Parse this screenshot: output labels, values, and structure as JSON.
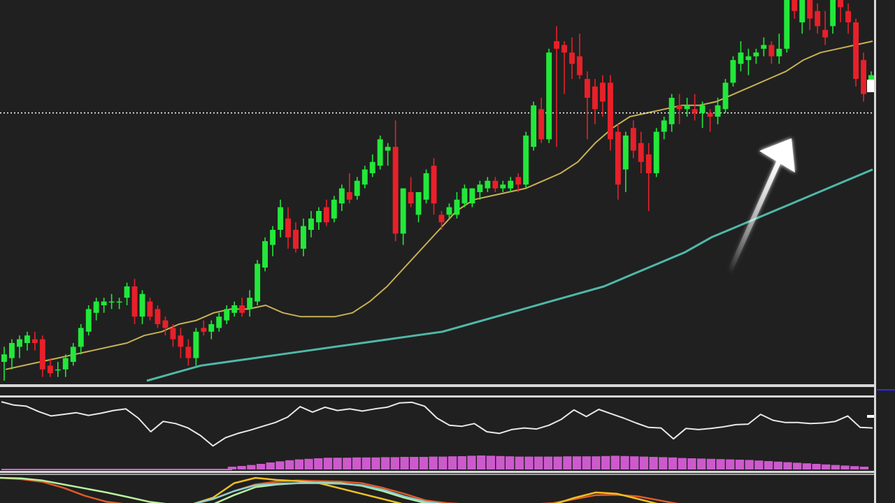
{
  "colors": {
    "background": "#202020",
    "bull": "#22e83a",
    "bear": "#e8202a",
    "ma_fast": "#c8b055",
    "ma_slow": "#4fb8a8",
    "oscillator": "#e8e8e8",
    "histogram": "#e060e0",
    "separator": "#d8d8d8",
    "price_level": "#ffffff",
    "arrow": "#ffffff",
    "lower_lines": [
      "#e05a28",
      "#f0c020",
      "#b8f0a0",
      "#8ad0d0"
    ]
  },
  "chart_data": [
    {
      "type": "candlestick",
      "panel": "price",
      "title": "",
      "xlabel": "",
      "ylabel": "",
      "grid": false,
      "legend": "none",
      "ylim": [
        0,
        100
      ],
      "price_level_line": 71,
      "candles": [
        {
          "o": 5,
          "h": 9,
          "l": 0,
          "c": 7
        },
        {
          "o": 6,
          "h": 11,
          "l": 3,
          "c": 10
        },
        {
          "o": 9,
          "h": 12,
          "l": 6,
          "c": 11
        },
        {
          "o": 10,
          "h": 13,
          "l": 8,
          "c": 12
        },
        {
          "o": 11,
          "h": 13,
          "l": 8,
          "c": 10
        },
        {
          "o": 11,
          "h": 12,
          "l": 1,
          "c": 3
        },
        {
          "o": 4,
          "h": 6,
          "l": 1,
          "c": 2
        },
        {
          "o": 3,
          "h": 5,
          "l": 1,
          "c": 3
        },
        {
          "o": 3,
          "h": 7,
          "l": 1,
          "c": 6
        },
        {
          "o": 5,
          "h": 10,
          "l": 4,
          "c": 9
        },
        {
          "o": 9,
          "h": 15,
          "l": 7,
          "c": 14
        },
        {
          "o": 13,
          "h": 20,
          "l": 12,
          "c": 19
        },
        {
          "o": 18,
          "h": 22,
          "l": 16,
          "c": 21
        },
        {
          "o": 20,
          "h": 22,
          "l": 18,
          "c": 21
        },
        {
          "o": 21,
          "h": 23,
          "l": 19,
          "c": 21
        },
        {
          "o": 21,
          "h": 22,
          "l": 19,
          "c": 21
        },
        {
          "o": 22,
          "h": 26,
          "l": 20,
          "c": 25
        },
        {
          "o": 25,
          "h": 27,
          "l": 15,
          "c": 17
        },
        {
          "o": 17,
          "h": 24,
          "l": 15,
          "c": 23
        },
        {
          "o": 21,
          "h": 22,
          "l": 16,
          "c": 17
        },
        {
          "o": 19,
          "h": 20,
          "l": 14,
          "c": 15
        },
        {
          "o": 16,
          "h": 17,
          "l": 12,
          "c": 14
        },
        {
          "o": 14,
          "h": 15,
          "l": 9,
          "c": 11
        },
        {
          "o": 12,
          "h": 14,
          "l": 6,
          "c": 9
        },
        {
          "o": 9,
          "h": 11,
          "l": 4,
          "c": 6
        },
        {
          "o": 6,
          "h": 14,
          "l": 4,
          "c": 13
        },
        {
          "o": 14,
          "h": 16,
          "l": 12,
          "c": 13
        },
        {
          "o": 13,
          "h": 16,
          "l": 11,
          "c": 15
        },
        {
          "o": 14,
          "h": 18,
          "l": 13,
          "c": 17
        },
        {
          "o": 16,
          "h": 20,
          "l": 15,
          "c": 19
        },
        {
          "o": 18,
          "h": 21,
          "l": 17,
          "c": 20
        },
        {
          "o": 20,
          "h": 22,
          "l": 17,
          "c": 18
        },
        {
          "o": 19,
          "h": 24,
          "l": 17,
          "c": 22
        },
        {
          "o": 21,
          "h": 32,
          "l": 20,
          "c": 31
        },
        {
          "o": 30,
          "h": 38,
          "l": 29,
          "c": 37
        },
        {
          "o": 36,
          "h": 41,
          "l": 33,
          "c": 40
        },
        {
          "o": 40,
          "h": 48,
          "l": 38,
          "c": 46
        },
        {
          "o": 43,
          "h": 46,
          "l": 35,
          "c": 38
        },
        {
          "o": 40,
          "h": 42,
          "l": 34,
          "c": 35
        },
        {
          "o": 35,
          "h": 43,
          "l": 33,
          "c": 41
        },
        {
          "o": 40,
          "h": 45,
          "l": 38,
          "c": 43
        },
        {
          "o": 42,
          "h": 46,
          "l": 40,
          "c": 45
        },
        {
          "o": 46,
          "h": 48,
          "l": 41,
          "c": 42
        },
        {
          "o": 43,
          "h": 49,
          "l": 42,
          "c": 48
        },
        {
          "o": 47,
          "h": 52,
          "l": 45,
          "c": 51
        },
        {
          "o": 50,
          "h": 55,
          "l": 47,
          "c": 48
        },
        {
          "o": 49,
          "h": 54,
          "l": 48,
          "c": 53
        },
        {
          "o": 52,
          "h": 57,
          "l": 51,
          "c": 56
        },
        {
          "o": 55,
          "h": 60,
          "l": 54,
          "c": 58
        },
        {
          "o": 57,
          "h": 65,
          "l": 56,
          "c": 64
        },
        {
          "o": 61,
          "h": 63,
          "l": 57,
          "c": 62
        },
        {
          "o": 62,
          "h": 69,
          "l": 37,
          "c": 39
        },
        {
          "o": 39,
          "h": 51,
          "l": 36,
          "c": 51
        },
        {
          "o": 50,
          "h": 54,
          "l": 46,
          "c": 47
        },
        {
          "o": 44,
          "h": 50,
          "l": 42,
          "c": 50
        },
        {
          "o": 48,
          "h": 56,
          "l": 47,
          "c": 55
        },
        {
          "o": 57,
          "h": 59,
          "l": 44,
          "c": 47
        },
        {
          "o": 44,
          "h": 45,
          "l": 40,
          "c": 42
        },
        {
          "o": 44,
          "h": 47,
          "l": 43,
          "c": 46
        },
        {
          "o": 44,
          "h": 50,
          "l": 43,
          "c": 48
        },
        {
          "o": 47,
          "h": 52,
          "l": 46,
          "c": 51
        },
        {
          "o": 47,
          "h": 51,
          "l": 46,
          "c": 51
        },
        {
          "o": 50,
          "h": 53,
          "l": 48,
          "c": 52
        },
        {
          "o": 51,
          "h": 54,
          "l": 50,
          "c": 53
        },
        {
          "o": 53,
          "h": 54,
          "l": 50,
          "c": 51
        },
        {
          "o": 51,
          "h": 53,
          "l": 50,
          "c": 52
        },
        {
          "o": 51,
          "h": 54,
          "l": 50,
          "c": 53
        },
        {
          "o": 54,
          "h": 55,
          "l": 50,
          "c": 52
        },
        {
          "o": 52,
          "h": 66,
          "l": 51,
          "c": 65
        },
        {
          "o": 62,
          "h": 74,
          "l": 61,
          "c": 73
        },
        {
          "o": 72,
          "h": 75,
          "l": 63,
          "c": 64
        },
        {
          "o": 64,
          "h": 88,
          "l": 63,
          "c": 87
        },
        {
          "o": 90,
          "h": 94,
          "l": 62,
          "c": 88
        },
        {
          "o": 89,
          "h": 90,
          "l": 76,
          "c": 87
        },
        {
          "o": 87,
          "h": 91,
          "l": 80,
          "c": 84
        },
        {
          "o": 86,
          "h": 92,
          "l": 80,
          "c": 81
        },
        {
          "o": 80,
          "h": 82,
          "l": 64,
          "c": 75
        },
        {
          "o": 78,
          "h": 80,
          "l": 68,
          "c": 72
        },
        {
          "o": 79,
          "h": 81,
          "l": 70,
          "c": 74
        },
        {
          "o": 79,
          "h": 81,
          "l": 61,
          "c": 64
        },
        {
          "o": 66,
          "h": 68,
          "l": 48,
          "c": 52
        },
        {
          "o": 56,
          "h": 66,
          "l": 50,
          "c": 65
        },
        {
          "o": 67,
          "h": 69,
          "l": 59,
          "c": 61
        },
        {
          "o": 63,
          "h": 66,
          "l": 55,
          "c": 58
        },
        {
          "o": 60,
          "h": 63,
          "l": 45,
          "c": 55
        },
        {
          "o": 55,
          "h": 67,
          "l": 54,
          "c": 66
        },
        {
          "o": 66,
          "h": 70,
          "l": 64,
          "c": 69
        },
        {
          "o": 68,
          "h": 76,
          "l": 66,
          "c": 75
        },
        {
          "o": 73,
          "h": 76,
          "l": 68,
          "c": 72
        },
        {
          "o": 72,
          "h": 75,
          "l": 70,
          "c": 73
        },
        {
          "o": 72,
          "h": 76,
          "l": 69,
          "c": 71
        },
        {
          "o": 71,
          "h": 74,
          "l": 67,
          "c": 73
        },
        {
          "o": 71,
          "h": 72,
          "l": 66,
          "c": 70
        },
        {
          "o": 70,
          "h": 75,
          "l": 68,
          "c": 73
        },
        {
          "o": 72,
          "h": 80,
          "l": 71,
          "c": 79
        },
        {
          "o": 79,
          "h": 86,
          "l": 78,
          "c": 85
        },
        {
          "o": 84,
          "h": 90,
          "l": 82,
          "c": 87
        },
        {
          "o": 85,
          "h": 88,
          "l": 81,
          "c": 86
        },
        {
          "o": 86,
          "h": 88,
          "l": 84,
          "c": 87
        },
        {
          "o": 88,
          "h": 91,
          "l": 86,
          "c": 89
        },
        {
          "o": 89,
          "h": 90,
          "l": 84,
          "c": 86
        },
        {
          "o": 86,
          "h": 92,
          "l": 84,
          "c": 88
        },
        {
          "o": 88,
          "h": 103,
          "l": 87,
          "c": 103
        },
        {
          "o": 103,
          "h": 105,
          "l": 96,
          "c": 98
        },
        {
          "o": 95,
          "h": 102,
          "l": 92,
          "c": 101
        },
        {
          "o": 102,
          "h": 104,
          "l": 93,
          "c": 96
        },
        {
          "o": 98,
          "h": 100,
          "l": 92,
          "c": 94
        },
        {
          "o": 93,
          "h": 98,
          "l": 89,
          "c": 91
        },
        {
          "o": 94,
          "h": 103,
          "l": 92,
          "c": 102
        },
        {
          "o": 104,
          "h": 105,
          "l": 95,
          "c": 99
        },
        {
          "o": 98,
          "h": 100,
          "l": 92,
          "c": 95
        },
        {
          "o": 95,
          "h": 96,
          "l": 78,
          "c": 80
        },
        {
          "o": 85,
          "h": 87,
          "l": 74,
          "c": 76
        },
        {
          "o": 78,
          "h": 82,
          "l": 77,
          "c": 81
        }
      ],
      "ma_fast": [
        3,
        4,
        5,
        6,
        7,
        8,
        9,
        10,
        12,
        13,
        15,
        16,
        18,
        19,
        19,
        20,
        18,
        17,
        17,
        17,
        18,
        21,
        25,
        30,
        35,
        40,
        45,
        48,
        49,
        50,
        51,
        53,
        55,
        58,
        63,
        67,
        70,
        71,
        72,
        73,
        73,
        74,
        76,
        78,
        80,
        82,
        85,
        87,
        88,
        89,
        90
      ],
      "ma_slow": [
        0,
        2,
        4,
        5,
        6,
        7,
        8,
        9,
        10,
        11,
        12,
        13,
        15,
        17,
        19,
        21,
        23,
        25,
        28,
        31,
        34,
        38,
        41,
        44,
        47,
        50,
        53,
        56
      ]
    },
    {
      "type": "line",
      "panel": "oscillator",
      "title": "",
      "ylim": [
        0,
        100
      ],
      "values": [
        96,
        90,
        88,
        78,
        70,
        73,
        76,
        71,
        75,
        80,
        83,
        66,
        41,
        60,
        56,
        48,
        34,
        15,
        30,
        38,
        44,
        51,
        58,
        68,
        87,
        77,
        86,
        80,
        83,
        79,
        83,
        86,
        94,
        95,
        88,
        66,
        53,
        51,
        56,
        41,
        38,
        45,
        48,
        46,
        53,
        64,
        81,
        69,
        82,
        74,
        66,
        57,
        49,
        48,
        28,
        47,
        45,
        47,
        50,
        54,
        55,
        73,
        62,
        58,
        58,
        56,
        57,
        60,
        70,
        49,
        48
      ]
    },
    {
      "type": "bar",
      "panel": "histogram",
      "title": "",
      "ylim": [
        0,
        100
      ],
      "values": [
        20,
        25,
        32,
        40,
        50,
        58,
        66,
        72,
        76,
        80,
        84,
        84,
        84,
        86,
        86,
        86,
        88,
        88,
        90,
        90,
        90,
        92,
        92,
        94,
        95,
        98,
        100,
        98,
        96,
        94,
        92,
        92,
        92,
        92,
        92,
        94,
        94,
        94,
        94,
        96,
        98,
        96,
        94,
        92,
        90,
        88,
        86,
        82,
        80,
        78,
        76,
        74,
        72,
        70,
        68,
        64,
        60,
        56,
        52,
        48,
        44,
        40,
        36,
        32,
        28,
        24,
        20
      ]
    },
    {
      "type": "line",
      "panel": "lower",
      "title": "",
      "ylim": [
        0,
        100
      ],
      "series": [
        {
          "values": [
            100,
            95,
            85,
            62,
            32,
            10,
            0,
            0,
            0,
            0,
            20,
            50,
            75,
            86,
            90,
            88,
            86,
            80,
            62,
            40,
            15,
            5,
            0,
            0,
            0,
            0,
            5,
            20,
            35,
            36,
            30,
            15,
            0,
            0,
            0,
            0,
            0,
            0,
            0,
            0,
            0,
            0
          ]
        },
        {
          "values": [
            0,
            0,
            0,
            0,
            0,
            0,
            0,
            0,
            0,
            0,
            25,
            80,
            100,
            92,
            88,
            80,
            60,
            40,
            20,
            0,
            0,
            0,
            0,
            0,
            0,
            0,
            0,
            25,
            45,
            40,
            20,
            0,
            0,
            0,
            0,
            0,
            0,
            0,
            0,
            0,
            0,
            0
          ]
        },
        {
          "values": [
            100,
            98,
            90,
            75,
            60,
            45,
            28,
            10,
            0,
            0,
            0,
            35,
            65,
            75,
            80,
            82,
            80,
            70,
            50,
            25,
            5,
            0,
            0,
            0,
            0,
            0,
            0,
            0,
            0,
            0,
            0,
            0,
            0,
            0,
            0,
            0,
            0,
            0,
            0,
            0,
            0,
            0
          ]
        },
        {
          "values": [
            0,
            0,
            0,
            0,
            0,
            0,
            0,
            0,
            0,
            0,
            20,
            50,
            72,
            78,
            80,
            80,
            78,
            72,
            55,
            30,
            10,
            0,
            0,
            0,
            0,
            0,
            0,
            0,
            0,
            0,
            0,
            0,
            0,
            0,
            0,
            0,
            0,
            0,
            0,
            0,
            0,
            0
          ]
        }
      ]
    }
  ]
}
